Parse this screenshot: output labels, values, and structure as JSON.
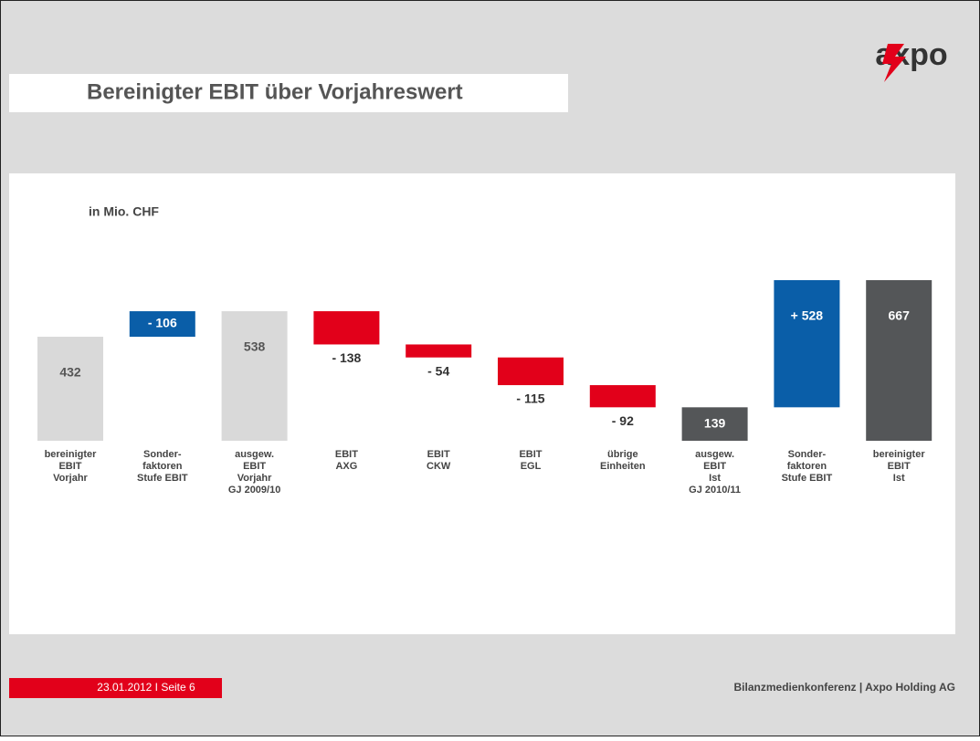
{
  "header": {
    "title": "Bereinigter EBIT über Vorjahreswert",
    "logo": "axpo"
  },
  "chart_data": {
    "type": "waterfall",
    "subtitle": "in Mio. CHF",
    "categories": [
      [
        "bereinigter",
        "EBIT",
        "Vorjahr"
      ],
      [
        "Sonder-",
        "faktoren",
        "Stufe EBIT"
      ],
      [
        "ausgew.",
        "EBIT",
        "Vorjahr",
        "GJ 2009/10"
      ],
      [
        "EBIT",
        "AXG"
      ],
      [
        "EBIT",
        "CKW"
      ],
      [
        "EBIT",
        "EGL"
      ],
      [
        "übrige",
        "Einheiten"
      ],
      [
        "ausgew.",
        "EBIT",
        "Ist",
        "GJ 2010/11"
      ],
      [
        "Sonder-",
        "faktoren",
        "Stufe EBIT"
      ],
      [
        "bereinigter",
        "EBIT",
        "Ist"
      ]
    ],
    "values": [
      432,
      -106,
      538,
      -138,
      -54,
      -115,
      -92,
      139,
      528,
      667
    ],
    "value_labels": [
      "432",
      "- 106",
      "538",
      "- 138",
      "- 54",
      "- 115",
      "- 92",
      "139",
      "+ 528",
      "667"
    ],
    "colors": [
      "#d9d9d9",
      "#0a5ea8",
      "#d9d9d9",
      "#e2001a",
      "#e2001a",
      "#e2001a",
      "#e2001a",
      "#545658",
      "#0a5ea8",
      "#545658"
    ]
  },
  "footer": {
    "date": "23.01.2012 I Seite 6",
    "event": "Bilanzmedienkonferenz | Axpo Holding AG"
  }
}
